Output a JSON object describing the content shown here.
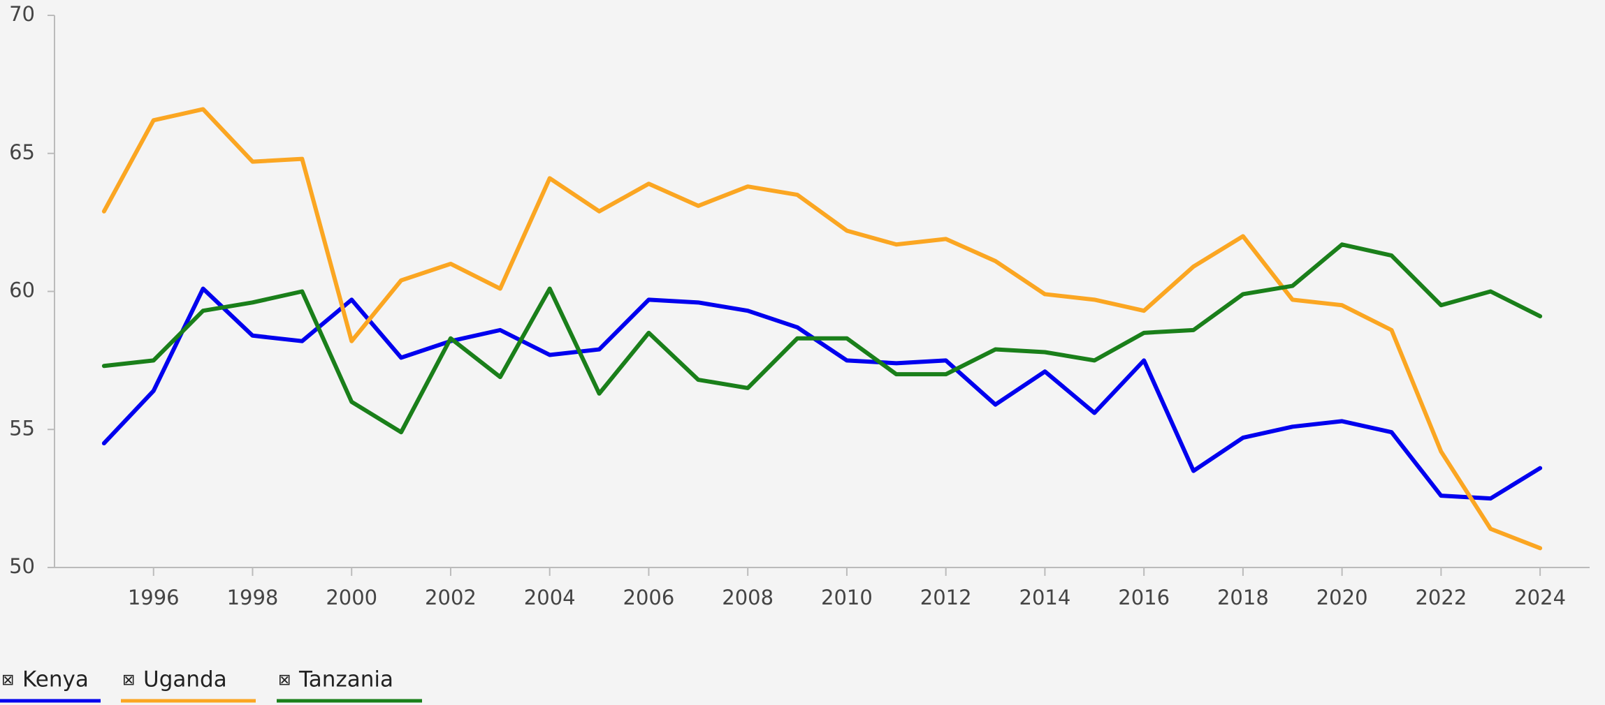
{
  "chart_data": {
    "type": "line",
    "x": [
      1995,
      1996,
      1997,
      1998,
      1999,
      2000,
      2001,
      2002,
      2003,
      2004,
      2005,
      2006,
      2007,
      2008,
      2009,
      2010,
      2011,
      2012,
      2013,
      2014,
      2015,
      2016,
      2017,
      2018,
      2019,
      2020,
      2021,
      2022,
      2023,
      2024
    ],
    "series": [
      {
        "name": "Kenya",
        "color": "#0000ee",
        "values": [
          54.5,
          56.4,
          60.1,
          58.4,
          58.2,
          59.7,
          57.6,
          58.2,
          58.6,
          57.7,
          57.9,
          59.7,
          59.6,
          59.3,
          58.7,
          57.5,
          57.4,
          57.5,
          55.9,
          57.1,
          55.6,
          57.5,
          53.5,
          54.7,
          55.1,
          55.3,
          54.9,
          52.6,
          52.5,
          53.6
        ]
      },
      {
        "name": "Uganda",
        "color": "#fba622",
        "values": [
          62.9,
          66.2,
          66.6,
          64.7,
          64.8,
          58.2,
          60.4,
          61.0,
          60.1,
          64.1,
          62.9,
          63.9,
          63.1,
          63.8,
          63.5,
          62.2,
          61.7,
          61.9,
          61.1,
          59.9,
          59.7,
          59.3,
          60.9,
          62.0,
          59.7,
          59.5,
          58.6,
          54.2,
          51.4,
          50.7
        ]
      },
      {
        "name": "Tanzania",
        "color": "#1a7f1a",
        "values": [
          57.3,
          57.5,
          59.3,
          59.6,
          60.0,
          56.0,
          54.9,
          58.3,
          56.9,
          60.1,
          56.3,
          58.5,
          56.8,
          56.5,
          58.3,
          58.3,
          57.0,
          57.0,
          57.9,
          57.8,
          57.5,
          58.5,
          58.6,
          59.9,
          60.2,
          61.7,
          61.3,
          59.5,
          60.0,
          59.1
        ]
      }
    ],
    "xlim": [
      1994,
      2025
    ],
    "xticks": [
      1996,
      1998,
      2000,
      2002,
      2004,
      2006,
      2008,
      2010,
      2012,
      2014,
      2016,
      2018,
      2020,
      2022,
      2024
    ],
    "ylim": [
      50,
      70
    ],
    "yticks": [
      50,
      55,
      60,
      65,
      70
    ],
    "legend": "bottom-left"
  }
}
